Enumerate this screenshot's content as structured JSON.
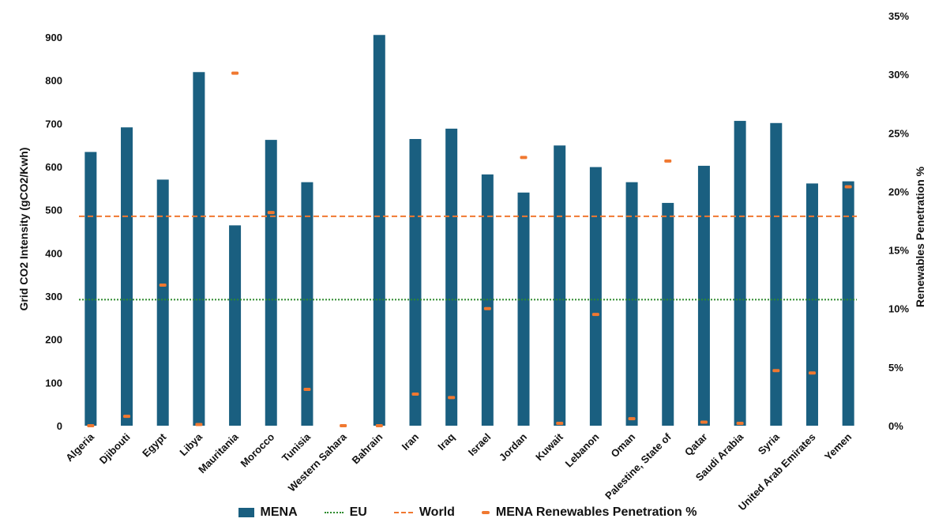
{
  "chart_data": {
    "type": "bar",
    "title": "",
    "xlabel": "",
    "ylabel": "Grid CO2 Intensity (gCO2/Kwh)",
    "y2label": "Renewables Penetration %",
    "ylim": [
      0,
      900
    ],
    "y2lim": [
      0,
      35
    ],
    "y_ticks": [
      "0",
      "100",
      "200",
      "300",
      "400",
      "500",
      "600",
      "700",
      "800",
      "900"
    ],
    "y2_ticks": [
      "0%",
      "5%",
      "10%",
      "15%",
      "20%",
      "25%",
      "30%",
      "35%"
    ],
    "grid": false,
    "legend_position": "bottom",
    "categories": [
      "Algeria",
      "Djibouti",
      "Egypt",
      "Libya",
      "Mauritania",
      "Morocco",
      "Tunisia",
      "Western Sahara",
      "Bahrain",
      "Iran",
      "Iraq",
      "Israel",
      "Jordan",
      "Kuwait",
      "Lebanon",
      "Oman",
      "Palestine, State of",
      "Qatar",
      "Saudi Arabia",
      "Syria",
      "United Arab Emirates",
      "Yemen"
    ],
    "series": [
      {
        "name": "MENA",
        "kind": "bar",
        "axis": "left",
        "color": "#1a5f80",
        "values": [
          634,
          691,
          570,
          819,
          464,
          662,
          564,
          null,
          905,
          664,
          688,
          582,
          540,
          649,
          599,
          564,
          516,
          602,
          706,
          701,
          561,
          566
        ]
      },
      {
        "name": "EU",
        "kind": "hline",
        "axis": "left",
        "color": "#2e8b2e",
        "style": "dotted",
        "value": 292
      },
      {
        "name": "World",
        "kind": "hline",
        "axis": "left",
        "color": "#f07830",
        "style": "dashed",
        "value": 485
      },
      {
        "name": "MENA Renewables Penetration %",
        "kind": "marker",
        "axis": "right",
        "color": "#f07830",
        "values": [
          0,
          0.8,
          12.0,
          0.1,
          30.1,
          18.2,
          3.1,
          0,
          0,
          2.7,
          2.4,
          10.0,
          22.9,
          0.2,
          9.5,
          0.6,
          22.6,
          0.3,
          0.2,
          4.7,
          4.5,
          20.4
        ]
      }
    ]
  }
}
